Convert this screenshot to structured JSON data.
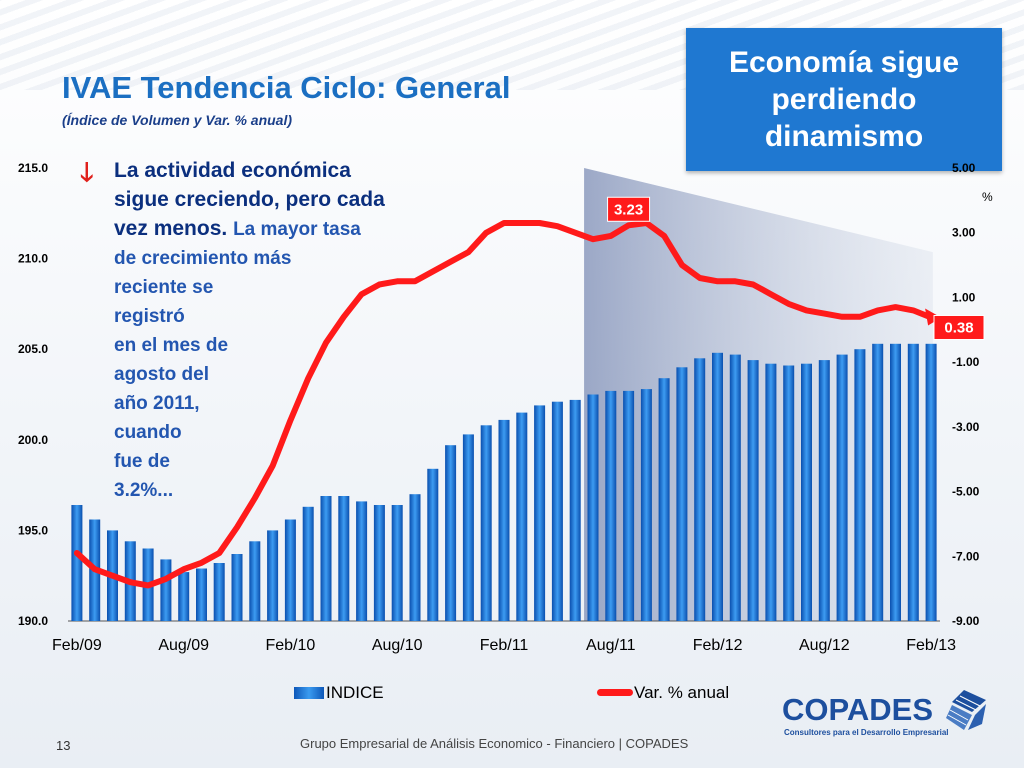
{
  "slide": {
    "highlight_box": "Economía sigue perdiendo dinamismo",
    "title": "IVAE Tendencia Ciclo: General",
    "subtitle": "(Índice de Volumen y Var. % anual)",
    "note_line1": "La actividad económica",
    "note_line2": "sigue creciendo, pero cada",
    "note_line3_bold": "vez menos.",
    "note_line3_small": "La mayor tasa",
    "note_line4": "de crecimiento más",
    "note_line5": "reciente se",
    "note_line6": "registró",
    "note_line7": "en el mes de",
    "note_line8": "agosto del",
    "note_line9": "año 2011,",
    "note_line10": "cuando",
    "note_line11": "fue de",
    "note_line12": "3.2%...",
    "arrow_icon": "down-arrow-icon",
    "footer": "Grupo Empresarial de Análisis Economico - Financiero | COPADES",
    "page_number": "13",
    "logo_text": "COPADES",
    "logo_tagline": "Consultores para el Desarrollo Empresarial"
  },
  "chart_data": {
    "type": "bar+line",
    "x_tick_labels": [
      "Feb/09",
      "Aug/09",
      "Feb/10",
      "Aug/10",
      "Feb/11",
      "Aug/11",
      "Feb/12",
      "Aug/12",
      "Feb/13"
    ],
    "left_axis": {
      "ticks": [
        "190.0",
        "195.0",
        "200.0",
        "205.0",
        "210.0",
        "215.0"
      ],
      "range": [
        190,
        215
      ]
    },
    "right_axis": {
      "ticks": [
        "-9.00",
        "-7.00",
        "-5.00",
        "-3.00",
        "-1.00",
        "1.00",
        "3.00",
        "5.00"
      ],
      "range": [
        -9,
        5
      ],
      "unit": "%"
    },
    "series": [
      {
        "name": "INDICE",
        "kind": "bar",
        "axis": "left",
        "color": "#1a6fd6",
        "values": [
          196.4,
          195.6,
          195.0,
          194.4,
          194.0,
          193.4,
          192.7,
          192.9,
          193.2,
          193.7,
          194.4,
          195.0,
          195.6,
          196.3,
          196.9,
          196.9,
          196.6,
          196.4,
          196.4,
          197.0,
          198.4,
          199.7,
          200.3,
          200.8,
          201.1,
          201.5,
          201.9,
          202.1,
          202.2,
          202.5,
          202.7,
          202.7,
          202.8,
          203.4,
          204.0,
          204.5,
          204.8,
          204.7,
          204.4,
          204.2,
          204.1,
          204.2,
          204.4,
          204.7,
          205.0,
          205.3,
          205.3,
          205.3,
          205.3
        ]
      },
      {
        "name": "Var. % anual",
        "kind": "line",
        "axis": "right",
        "color": "#ff1a1a",
        "values": [
          -6.9,
          -7.4,
          -7.6,
          -7.8,
          -7.9,
          -7.7,
          -7.4,
          -7.2,
          -6.9,
          -6.1,
          -5.2,
          -4.2,
          -2.8,
          -1.5,
          -0.4,
          0.4,
          1.1,
          1.4,
          1.5,
          1.5,
          1.8,
          2.1,
          2.4,
          3.0,
          3.3,
          3.3,
          3.3,
          3.2,
          3.0,
          2.8,
          2.9,
          3.23,
          3.3,
          2.9,
          2.0,
          1.6,
          1.5,
          1.5,
          1.4,
          1.1,
          0.8,
          0.6,
          0.5,
          0.4,
          0.4,
          0.6,
          0.7,
          0.6,
          0.38
        ]
      }
    ],
    "annotations": [
      {
        "label": "3.23",
        "series": "Var. % anual",
        "index": 31,
        "value": 3.23
      },
      {
        "label": "0.38",
        "series": "Var. % anual",
        "index": 48,
        "value": 0.38
      }
    ],
    "legend_placement": "bottom",
    "shaded_region": {
      "from_index": 29,
      "to_index": 48
    }
  }
}
